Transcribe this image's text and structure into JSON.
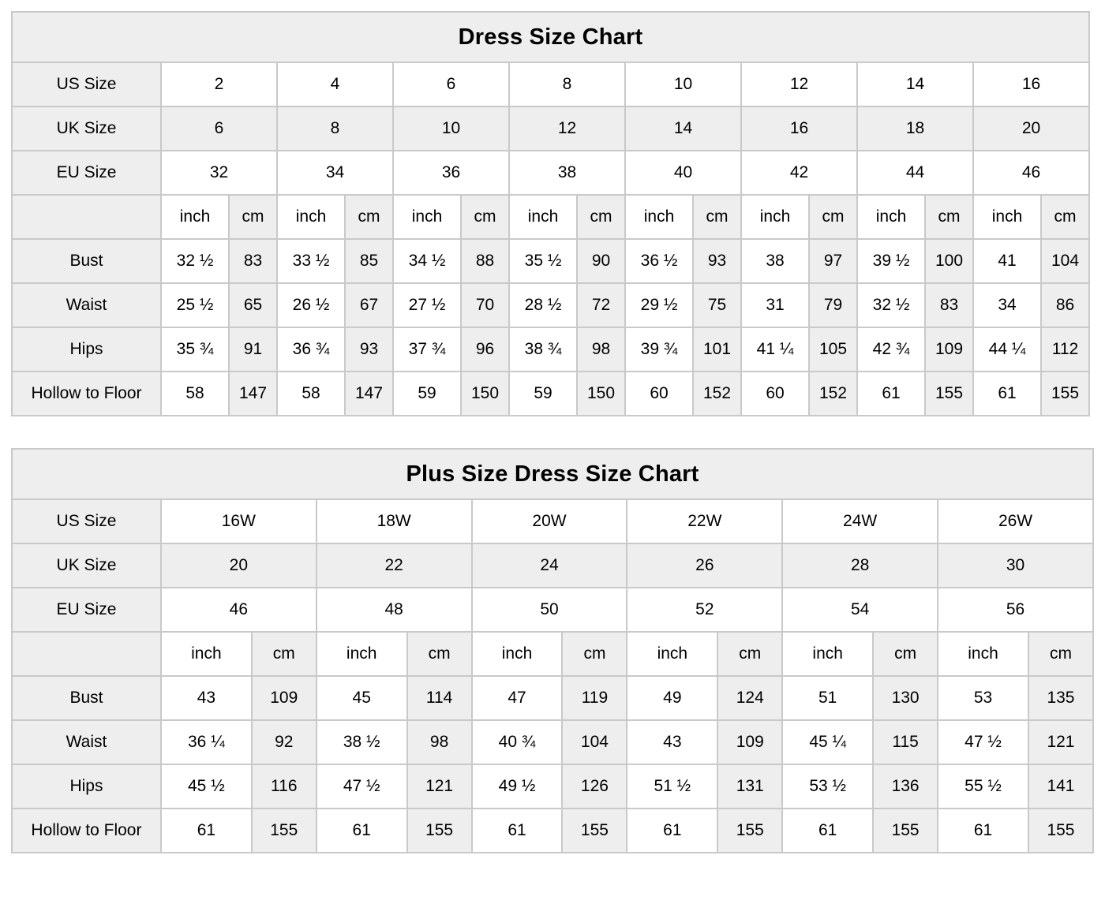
{
  "unit_labels": {
    "inch": "inch",
    "cm": "cm"
  },
  "colors": {
    "shaded_cell": "#eeeeee",
    "border": "#c9c9c9",
    "text": "#000000",
    "page_bg": "#ffffff"
  },
  "chart_data": [
    {
      "type": "table",
      "name": "dress-size-chart",
      "title": "Dress Size Chart",
      "size_rows": [
        {
          "label": "US Size",
          "values": [
            "2",
            "4",
            "6",
            "8",
            "10",
            "12",
            "14",
            "16"
          ]
        },
        {
          "label": "UK Size",
          "values": [
            "6",
            "8",
            "10",
            "12",
            "14",
            "16",
            "18",
            "20"
          ]
        },
        {
          "label": "EU Size",
          "values": [
            "32",
            "34",
            "36",
            "38",
            "40",
            "42",
            "44",
            "46"
          ]
        }
      ],
      "measure_rows": [
        {
          "label": "Bust",
          "pairs": [
            [
              "32 ½",
              "83"
            ],
            [
              "33 ½",
              "85"
            ],
            [
              "34 ½",
              "88"
            ],
            [
              "35 ½",
              "90"
            ],
            [
              "36 ½",
              "93"
            ],
            [
              "38",
              "97"
            ],
            [
              "39 ½",
              "100"
            ],
            [
              "41",
              "104"
            ]
          ]
        },
        {
          "label": "Waist",
          "pairs": [
            [
              "25 ½",
              "65"
            ],
            [
              "26 ½",
              "67"
            ],
            [
              "27 ½",
              "70"
            ],
            [
              "28 ½",
              "72"
            ],
            [
              "29 ½",
              "75"
            ],
            [
              "31",
              "79"
            ],
            [
              "32 ½",
              "83"
            ],
            [
              "34",
              "86"
            ]
          ]
        },
        {
          "label": "Hips",
          "pairs": [
            [
              "35 ¾",
              "91"
            ],
            [
              "36 ¾",
              "93"
            ],
            [
              "37 ¾",
              "96"
            ],
            [
              "38 ¾",
              "98"
            ],
            [
              "39 ¾",
              "101"
            ],
            [
              "41 ¼",
              "105"
            ],
            [
              "42 ¾",
              "109"
            ],
            [
              "44 ¼",
              "112"
            ]
          ]
        },
        {
          "label": "Hollow to Floor",
          "pairs": [
            [
              "58",
              "147"
            ],
            [
              "58",
              "147"
            ],
            [
              "59",
              "150"
            ],
            [
              "59",
              "150"
            ],
            [
              "60",
              "152"
            ],
            [
              "60",
              "152"
            ],
            [
              "61",
              "155"
            ],
            [
              "61",
              "155"
            ]
          ]
        }
      ]
    },
    {
      "type": "table",
      "name": "plus-size-dress-size-chart",
      "title": "Plus Size Dress Size Chart",
      "size_rows": [
        {
          "label": "US Size",
          "values": [
            "16W",
            "18W",
            "20W",
            "22W",
            "24W",
            "26W"
          ]
        },
        {
          "label": "UK Size",
          "values": [
            "20",
            "22",
            "24",
            "26",
            "28",
            "30"
          ]
        },
        {
          "label": "EU Size",
          "values": [
            "46",
            "48",
            "50",
            "52",
            "54",
            "56"
          ]
        }
      ],
      "measure_rows": [
        {
          "label": "Bust",
          "pairs": [
            [
              "43",
              "109"
            ],
            [
              "45",
              "114"
            ],
            [
              "47",
              "119"
            ],
            [
              "49",
              "124"
            ],
            [
              "51",
              "130"
            ],
            [
              "53",
              "135"
            ]
          ]
        },
        {
          "label": "Waist",
          "pairs": [
            [
              "36 ¼",
              "92"
            ],
            [
              "38 ½",
              "98"
            ],
            [
              "40 ¾",
              "104"
            ],
            [
              "43",
              "109"
            ],
            [
              "45 ¼",
              "115"
            ],
            [
              "47 ½",
              "121"
            ]
          ]
        },
        {
          "label": "Hips",
          "pairs": [
            [
              "45 ½",
              "116"
            ],
            [
              "47 ½",
              "121"
            ],
            [
              "49 ½",
              "126"
            ],
            [
              "51 ½",
              "131"
            ],
            [
              "53 ½",
              "136"
            ],
            [
              "55 ½",
              "141"
            ]
          ]
        },
        {
          "label": "Hollow to Floor",
          "pairs": [
            [
              "61",
              "155"
            ],
            [
              "61",
              "155"
            ],
            [
              "61",
              "155"
            ],
            [
              "61",
              "155"
            ],
            [
              "61",
              "155"
            ],
            [
              "61",
              "155"
            ]
          ]
        }
      ]
    }
  ]
}
